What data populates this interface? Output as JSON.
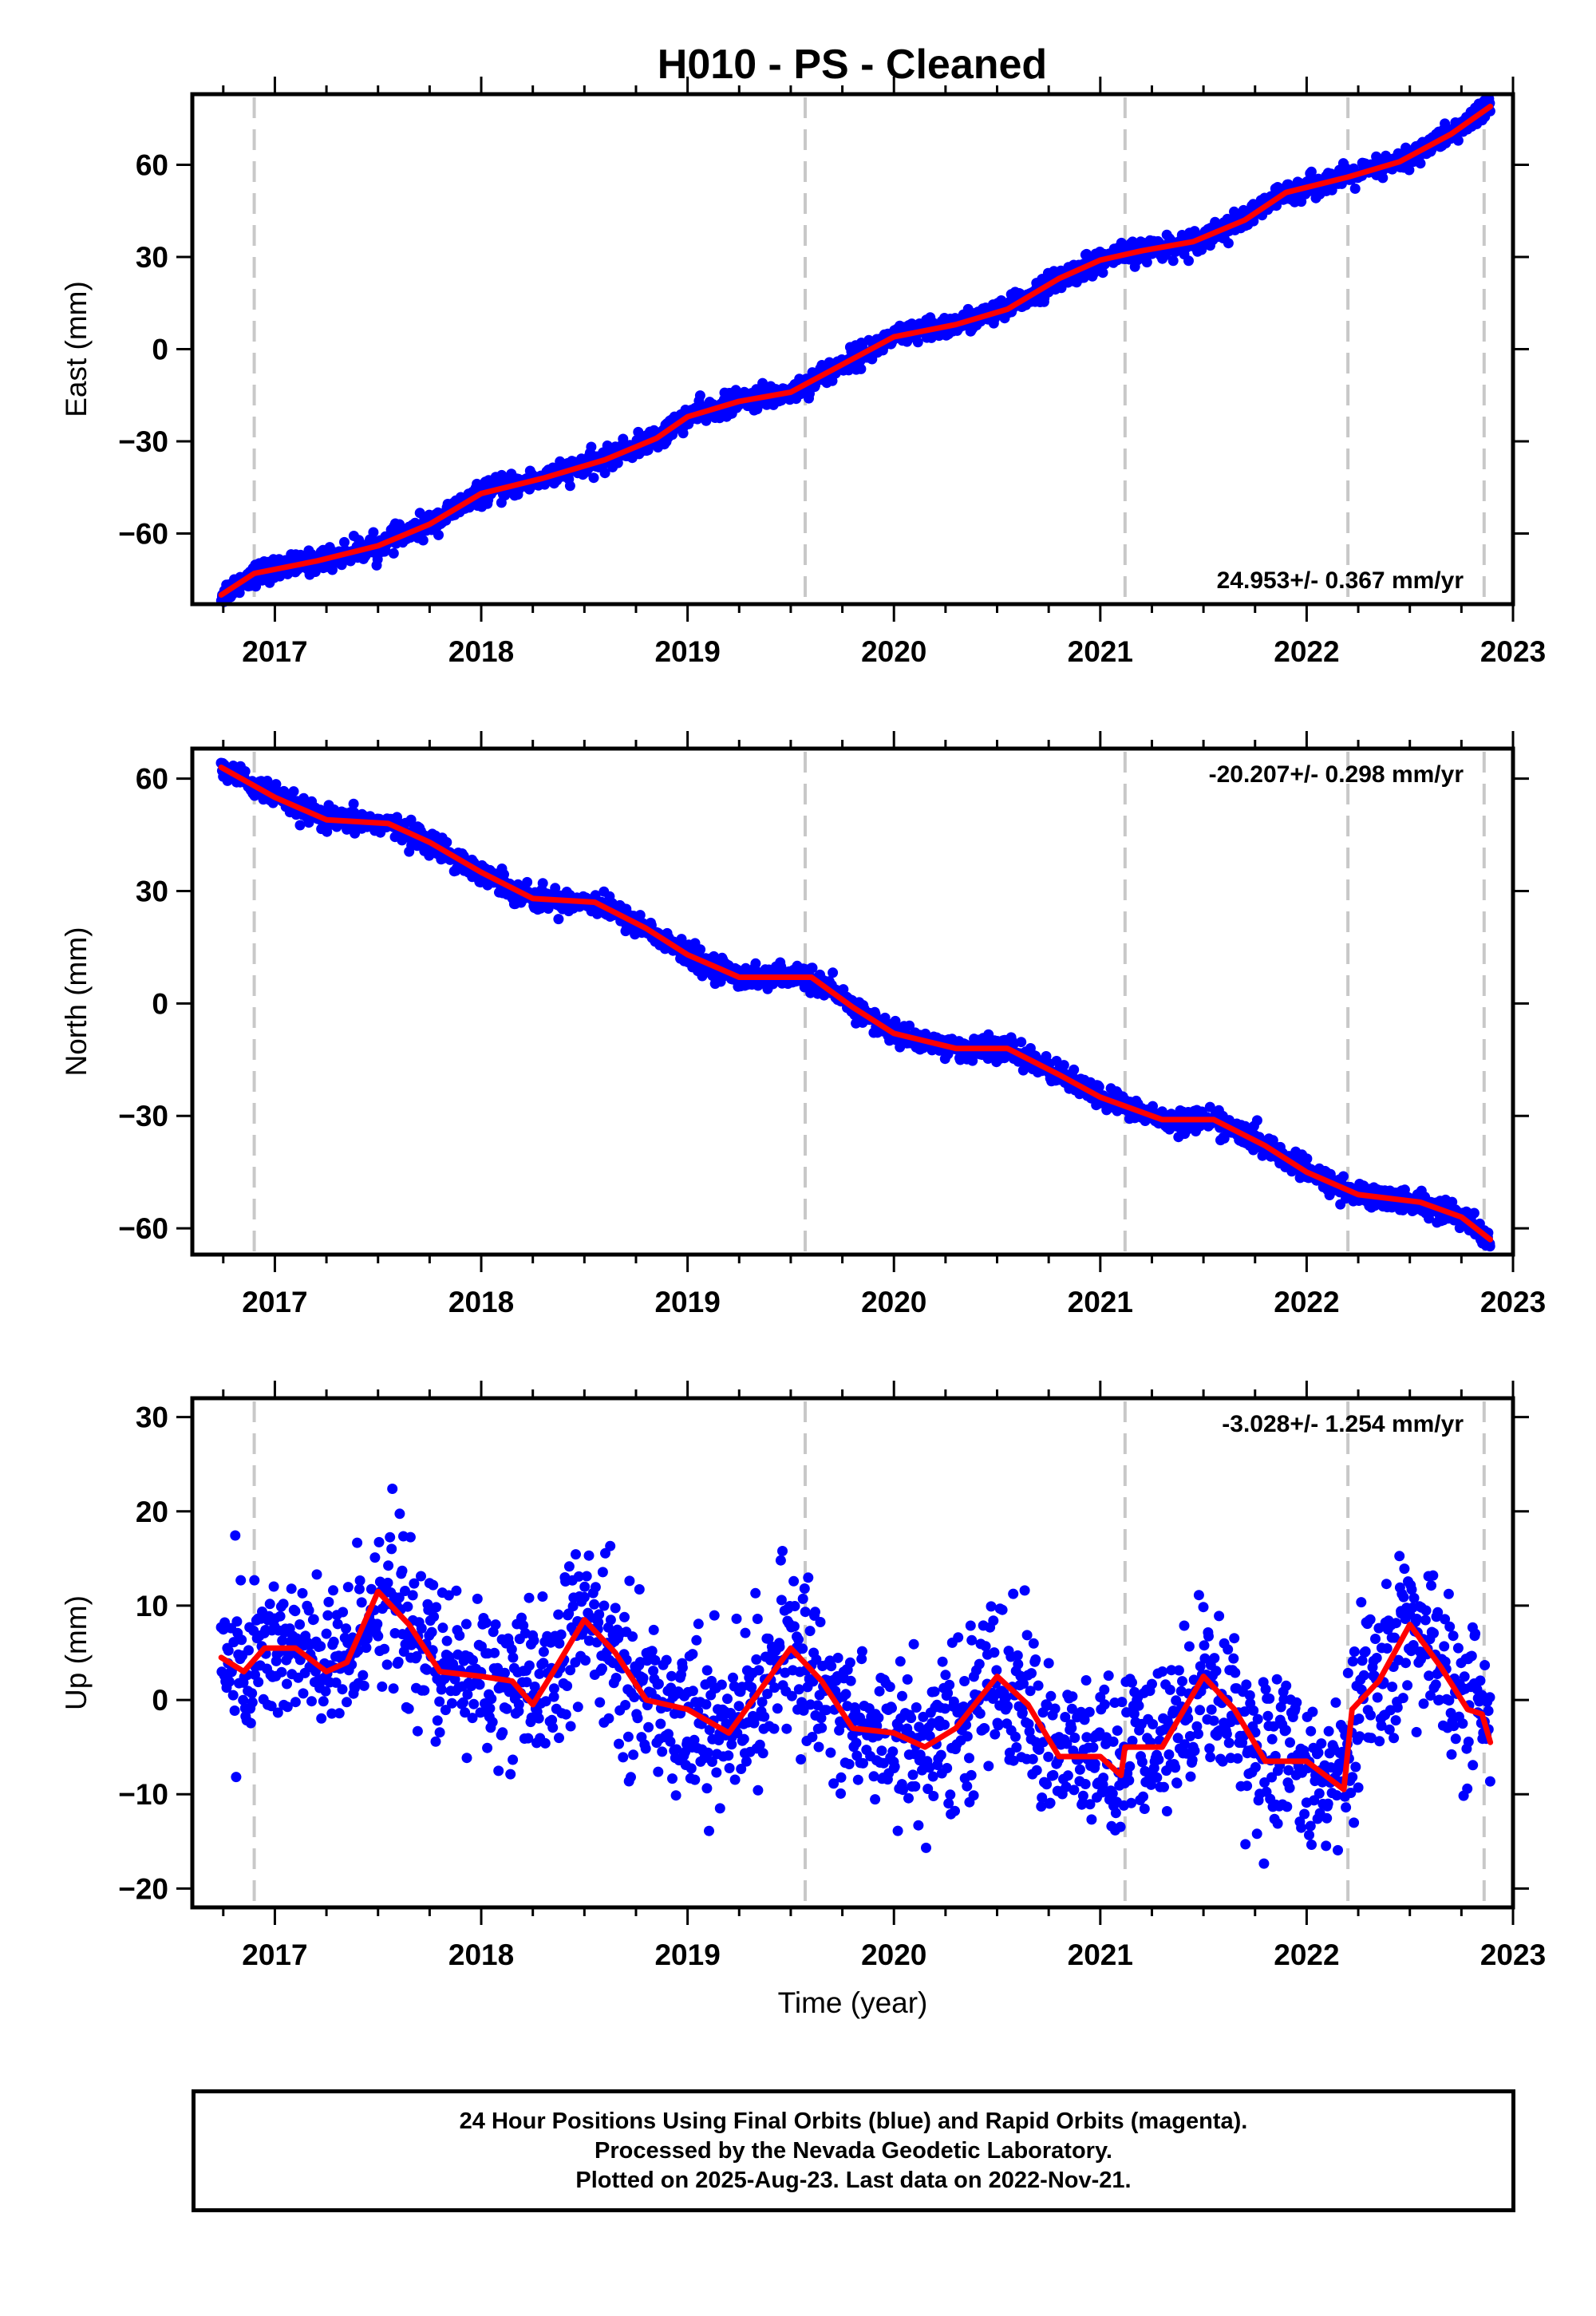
{
  "title": "H010  - PS - Cleaned",
  "colors": {
    "final": "#0000ff",
    "model": "#ff0000",
    "epoch_lines": "#c8c8c8",
    "frame": "#000000"
  },
  "chart_data": [
    {
      "type": "scatter",
      "ylabel": "East (mm)",
      "xlim": [
        2016.6,
        2023.0
      ],
      "ylim": [
        -83,
        83
      ],
      "yticks": [
        -60,
        -30,
        0,
        30,
        60
      ],
      "xticks": [
        2017,
        2018,
        2019,
        2020,
        2021,
        2022,
        2023
      ],
      "rate_label": "24.953+/- 0.367 mm/yr",
      "rate_position": "bottom-right",
      "epoch_lines": [
        2016.9,
        2019.57,
        2021.12,
        2022.2,
        2022.86
      ],
      "data_range": [
        2016.74,
        2022.89
      ],
      "series": [
        {
          "color": "blue",
          "trend": [
            [
              2016.74,
              -80
            ],
            [
              2016.9,
              -73
            ],
            [
              2017.2,
              -69
            ],
            [
              2017.5,
              -64
            ],
            [
              2017.75,
              -57
            ],
            [
              2018.0,
              -47
            ],
            [
              2018.3,
              -42
            ],
            [
              2018.6,
              -36
            ],
            [
              2018.85,
              -29
            ],
            [
              2019.0,
              -22
            ],
            [
              2019.25,
              -17
            ],
            [
              2019.5,
              -14
            ],
            [
              2019.75,
              -5
            ],
            [
              2020.0,
              4
            ],
            [
              2020.3,
              8
            ],
            [
              2020.55,
              13
            ],
            [
              2020.8,
              23
            ],
            [
              2021.0,
              29
            ],
            [
              2021.2,
              32
            ],
            [
              2021.45,
              35
            ],
            [
              2021.7,
              42
            ],
            [
              2021.9,
              51
            ],
            [
              2022.2,
              56
            ],
            [
              2022.45,
              61
            ],
            [
              2022.7,
              70
            ],
            [
              2022.89,
              79
            ]
          ],
          "scatter_sd": 1.8,
          "point_count": 1900
        },
        {
          "color": "red",
          "role": "model",
          "trend": [
            [
              2016.74,
              -80
            ],
            [
              2016.9,
              -73
            ],
            [
              2017.2,
              -69
            ],
            [
              2017.5,
              -64
            ],
            [
              2017.75,
              -57
            ],
            [
              2018.0,
              -47
            ],
            [
              2018.3,
              -42
            ],
            [
              2018.6,
              -36
            ],
            [
              2018.85,
              -29
            ],
            [
              2019.0,
              -22
            ],
            [
              2019.25,
              -17
            ],
            [
              2019.5,
              -14
            ],
            [
              2019.75,
              -5
            ],
            [
              2020.0,
              4
            ],
            [
              2020.3,
              8
            ],
            [
              2020.55,
              13
            ],
            [
              2020.8,
              23
            ],
            [
              2021.0,
              29
            ],
            [
              2021.2,
              32
            ],
            [
              2021.45,
              35
            ],
            [
              2021.7,
              42
            ],
            [
              2021.9,
              51
            ],
            [
              2022.2,
              56
            ],
            [
              2022.45,
              61
            ],
            [
              2022.7,
              70
            ],
            [
              2022.89,
              79
            ]
          ]
        }
      ]
    },
    {
      "type": "scatter",
      "ylabel": "North (mm)",
      "xlim": [
        2016.6,
        2023.0
      ],
      "ylim": [
        -67,
        68
      ],
      "yticks": [
        -60,
        -30,
        0,
        30,
        60
      ],
      "xticks": [
        2017,
        2018,
        2019,
        2020,
        2021,
        2022,
        2023
      ],
      "rate_label": "-20.207+/- 0.298 mm/yr",
      "rate_position": "top-right",
      "epoch_lines": [
        2016.9,
        2019.57,
        2021.12,
        2022.2,
        2022.86
      ],
      "data_range": [
        2016.74,
        2022.89
      ],
      "series": [
        {
          "color": "blue",
          "trend": [
            [
              2016.74,
              63
            ],
            [
              2017.0,
              55
            ],
            [
              2017.25,
              49
            ],
            [
              2017.55,
              48
            ],
            [
              2017.75,
              43
            ],
            [
              2018.0,
              35
            ],
            [
              2018.25,
              28
            ],
            [
              2018.55,
              27
            ],
            [
              2018.8,
              20
            ],
            [
              2019.0,
              13
            ],
            [
              2019.25,
              7
            ],
            [
              2019.6,
              7
            ],
            [
              2019.8,
              -1
            ],
            [
              2020.0,
              -8
            ],
            [
              2020.3,
              -12
            ],
            [
              2020.55,
              -12
            ],
            [
              2020.8,
              -19
            ],
            [
              2021.0,
              -25
            ],
            [
              2021.3,
              -31
            ],
            [
              2021.55,
              -31
            ],
            [
              2021.8,
              -38
            ],
            [
              2022.0,
              -45
            ],
            [
              2022.25,
              -51
            ],
            [
              2022.55,
              -53
            ],
            [
              2022.75,
              -57
            ],
            [
              2022.89,
              -63
            ]
          ],
          "scatter_sd": 1.5,
          "point_count": 1900
        },
        {
          "color": "red",
          "role": "model",
          "trend": [
            [
              2016.74,
              63
            ],
            [
              2017.0,
              55
            ],
            [
              2017.25,
              49
            ],
            [
              2017.55,
              48
            ],
            [
              2017.75,
              43
            ],
            [
              2018.0,
              35
            ],
            [
              2018.25,
              28
            ],
            [
              2018.55,
              27
            ],
            [
              2018.8,
              20
            ],
            [
              2019.0,
              13
            ],
            [
              2019.25,
              7
            ],
            [
              2019.6,
              7
            ],
            [
              2019.8,
              -1
            ],
            [
              2020.0,
              -8
            ],
            [
              2020.3,
              -12
            ],
            [
              2020.55,
              -12
            ],
            [
              2020.8,
              -19
            ],
            [
              2021.0,
              -25
            ],
            [
              2021.3,
              -31
            ],
            [
              2021.55,
              -31
            ],
            [
              2021.8,
              -38
            ],
            [
              2022.0,
              -45
            ],
            [
              2022.25,
              -51
            ],
            [
              2022.55,
              -53
            ],
            [
              2022.75,
              -57
            ],
            [
              2022.89,
              -63
            ]
          ]
        }
      ]
    },
    {
      "type": "scatter",
      "ylabel": "Up (mm)",
      "xlabel": "Time (year)",
      "xlim": [
        2016.6,
        2023.0
      ],
      "ylim": [
        -22,
        32
      ],
      "yticks": [
        -20,
        -10,
        0,
        10,
        20,
        30
      ],
      "xticks": [
        2017,
        2018,
        2019,
        2020,
        2021,
        2022,
        2023
      ],
      "rate_label": "-3.028+/- 1.254 mm/yr",
      "rate_position": "top-right",
      "epoch_lines": [
        2016.9,
        2019.57,
        2021.12,
        2022.2,
        2022.86
      ],
      "data_range": [
        2016.74,
        2022.89
      ],
      "series": [
        {
          "color": "blue",
          "trend": [
            [
              2016.74,
              4.5
            ],
            [
              2016.85,
              3
            ],
            [
              2016.95,
              5.5
            ],
            [
              2017.1,
              5.5
            ],
            [
              2017.25,
              3
            ],
            [
              2017.35,
              4
            ],
            [
              2017.5,
              11.5
            ],
            [
              2017.65,
              8
            ],
            [
              2017.8,
              3
            ],
            [
              2018.0,
              2.5
            ],
            [
              2018.15,
              2
            ],
            [
              2018.25,
              -0.5
            ],
            [
              2018.35,
              3
            ],
            [
              2018.5,
              8.5
            ],
            [
              2018.65,
              5
            ],
            [
              2018.8,
              0
            ],
            [
              2019.0,
              -1
            ],
            [
              2019.2,
              -3.5
            ],
            [
              2019.35,
              1
            ],
            [
              2019.5,
              5.5
            ],
            [
              2019.65,
              2
            ],
            [
              2019.8,
              -3
            ],
            [
              2020.0,
              -3.5
            ],
            [
              2020.15,
              -5
            ],
            [
              2020.3,
              -3
            ],
            [
              2020.5,
              2.5
            ],
            [
              2020.65,
              -0.5
            ],
            [
              2020.8,
              -6
            ],
            [
              2021.0,
              -6
            ],
            [
              2021.1,
              -8
            ],
            [
              2021.12,
              -5
            ],
            [
              2021.3,
              -5
            ],
            [
              2021.5,
              2.5
            ],
            [
              2021.65,
              -1
            ],
            [
              2021.8,
              -6.5
            ],
            [
              2022.0,
              -6.5
            ],
            [
              2022.18,
              -9.5
            ],
            [
              2022.22,
              -1
            ],
            [
              2022.35,
              2
            ],
            [
              2022.5,
              8
            ],
            [
              2022.65,
              3.5
            ],
            [
              2022.78,
              -1
            ],
            [
              2022.85,
              -1.5
            ],
            [
              2022.89,
              -4.5
            ]
          ],
          "scatter_sd": 4.2,
          "point_count": 1700
        },
        {
          "color": "red",
          "role": "model",
          "trend": [
            [
              2016.74,
              4.5
            ],
            [
              2016.85,
              3
            ],
            [
              2016.95,
              5.5
            ],
            [
              2017.1,
              5.5
            ],
            [
              2017.25,
              3
            ],
            [
              2017.35,
              4
            ],
            [
              2017.5,
              11.5
            ],
            [
              2017.65,
              8
            ],
            [
              2017.8,
              3
            ],
            [
              2018.0,
              2.5
            ],
            [
              2018.15,
              2
            ],
            [
              2018.25,
              -0.5
            ],
            [
              2018.35,
              3
            ],
            [
              2018.5,
              8.5
            ],
            [
              2018.65,
              5
            ],
            [
              2018.8,
              0
            ],
            [
              2019.0,
              -1
            ],
            [
              2019.2,
              -3.5
            ],
            [
              2019.35,
              1
            ],
            [
              2019.5,
              5.5
            ],
            [
              2019.65,
              2
            ],
            [
              2019.8,
              -3
            ],
            [
              2020.0,
              -3.5
            ],
            [
              2020.15,
              -5
            ],
            [
              2020.3,
              -3
            ],
            [
              2020.5,
              2.5
            ],
            [
              2020.65,
              -0.5
            ],
            [
              2020.8,
              -6
            ],
            [
              2021.0,
              -6
            ],
            [
              2021.1,
              -8
            ],
            [
              2021.12,
              -5
            ],
            [
              2021.3,
              -5
            ],
            [
              2021.5,
              2.5
            ],
            [
              2021.65,
              -1
            ],
            [
              2021.8,
              -6.5
            ],
            [
              2022.0,
              -6.5
            ],
            [
              2022.18,
              -9.5
            ],
            [
              2022.22,
              -1
            ],
            [
              2022.35,
              2
            ],
            [
              2022.5,
              8
            ],
            [
              2022.65,
              3.5
            ],
            [
              2022.78,
              -1
            ],
            [
              2022.85,
              -1.5
            ],
            [
              2022.89,
              -4.5
            ]
          ]
        }
      ]
    }
  ],
  "footer": {
    "line1": "24 Hour Positions Using Final Orbits (blue) and Rapid Orbits (magenta).",
    "line2": "Processed by the Nevada Geodetic Laboratory.",
    "line3": "Plotted on 2025-Aug-23. Last data on 2022-Nov-21."
  }
}
